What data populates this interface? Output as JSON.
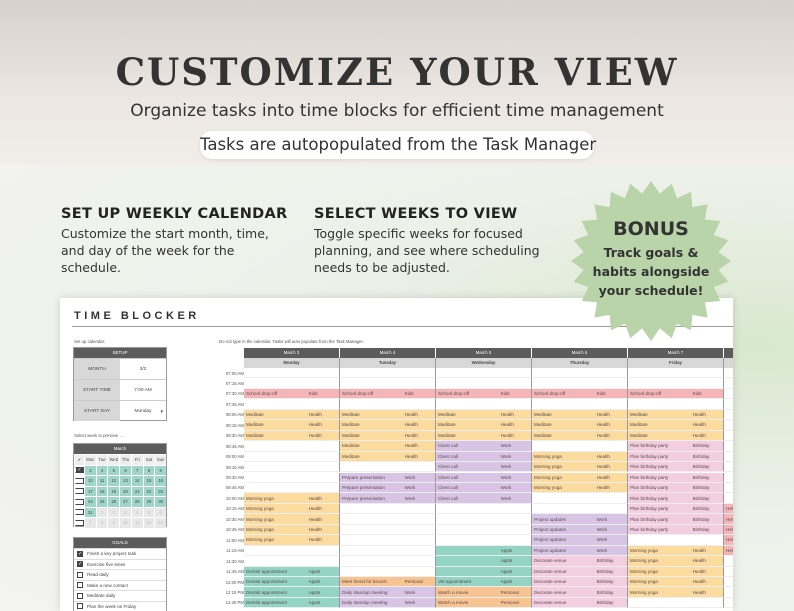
{
  "banner": {
    "title": "CUSTOMIZE YOUR VIEW",
    "subtitle": "Organize tasks into time blocks for efficient time management"
  },
  "features": [
    {
      "heading": "SET UP WEEKLY CALENDAR",
      "text": "Customize the start month, time, and day of the week for the schedule."
    },
    {
      "heading": "SELECT WEEKS TO VIEW",
      "text": "Toggle specific weeks for focused planning, and see where scheduling needs to be adjusted."
    }
  ],
  "badge": {
    "title": "BONUS",
    "text": "Track goals & habits alongside your schedule!",
    "color": "#b9d4a8"
  },
  "callout": {
    "text": "Tasks are autopopulated from the Task Manager"
  },
  "sheet": {
    "title": "TIME BLOCKER",
    "setup_note": "Set up calendar:",
    "grid_note": "Do not type in the calendar. Tasks will auto populate from the Task Manager.",
    "setup": {
      "header": "SETUP",
      "rows": [
        {
          "label": "MONTH",
          "value": "3/2"
        },
        {
          "label": "START TIME",
          "value": "7:00 AM"
        },
        {
          "label": "START DAY",
          "value": "Monday"
        }
      ]
    },
    "week_note": "Select week to preview →",
    "mini_calendar": {
      "month": "March",
      "check_header": "✔",
      "weekdays": [
        "Mon",
        "Tue",
        "Wed",
        "Thu",
        "Fri",
        "Sat",
        "Sun"
      ],
      "weeks": [
        {
          "checked": true,
          "days": [
            "3",
            "4",
            "5",
            "6",
            "7",
            "8",
            "9"
          ],
          "in_month": [
            true,
            true,
            true,
            true,
            true,
            true,
            true
          ]
        },
        {
          "checked": false,
          "days": [
            "10",
            "11",
            "12",
            "13",
            "14",
            "15",
            "16"
          ],
          "in_month": [
            true,
            true,
            true,
            true,
            true,
            true,
            true
          ]
        },
        {
          "checked": false,
          "days": [
            "17",
            "18",
            "19",
            "20",
            "21",
            "22",
            "23"
          ],
          "in_month": [
            true,
            true,
            true,
            true,
            true,
            true,
            true
          ]
        },
        {
          "checked": false,
          "days": [
            "24",
            "25",
            "26",
            "27",
            "28",
            "29",
            "30"
          ],
          "in_month": [
            true,
            true,
            true,
            true,
            true,
            true,
            true
          ]
        },
        {
          "checked": false,
          "days": [
            "31",
            "1",
            "2",
            "3",
            "4",
            "5",
            "6"
          ],
          "in_month": [
            true,
            false,
            false,
            false,
            false,
            false,
            false
          ]
        },
        {
          "checked": false,
          "days": [
            "7",
            "8",
            "9",
            "10",
            "11",
            "12",
            "13"
          ],
          "in_month": [
            false,
            false,
            false,
            false,
            false,
            false,
            false
          ]
        }
      ]
    },
    "goals": {
      "header": "GOALS",
      "items": [
        {
          "label": "Finish a key project task",
          "checked": true
        },
        {
          "label": "Exercise five times",
          "checked": true
        },
        {
          "label": "Read daily",
          "checked": false
        },
        {
          "label": "Make a new contact",
          "checked": false
        },
        {
          "label": "Meditate daily",
          "checked": false
        },
        {
          "label": "Plan the week on Friday",
          "checked": false
        }
      ]
    },
    "times": [
      "07:00 AM",
      "07:15 AM",
      "07:30 AM",
      "07:45 AM",
      "08:00 AM",
      "08:15 AM",
      "08:30 AM",
      "08:45 AM",
      "09:00 AM",
      "09:15 AM",
      "09:30 AM",
      "09:45 AM",
      "10:00 AM",
      "10:15 AM",
      "10:30 AM",
      "10:45 AM",
      "11:00 AM",
      "11:15 AM",
      "11:30 AM",
      "11:45 AM",
      "12:00 PM",
      "12:15 PM",
      "12:30 PM"
    ],
    "category_colors": {
      "Kids": "#f5b5b8",
      "Health": "#fbdb9e",
      "Work": "#d8c5e6",
      "Appts": "#93d4c4",
      "Personal": "#f8c592",
      "Birthday": "#f3cde0"
    },
    "days": [
      {
        "date": "March 3",
        "weekday": "Monday",
        "blocks": [
          {
            "start": "07:30 AM",
            "end": "07:30 AM",
            "task": "School drop-off",
            "category": "Kids"
          },
          {
            "start": "08:00 AM",
            "end": "08:30 AM",
            "task": "Meditate",
            "category": "Health"
          },
          {
            "start": "10:00 AM",
            "end": "11:00 AM",
            "task": "Morning yoga",
            "category": "Health"
          },
          {
            "start": "11:45 AM",
            "end": "12:30 PM",
            "task": "Dentist appointment",
            "category": "Appts"
          }
        ]
      },
      {
        "date": "March 4",
        "weekday": "Tuesday",
        "blocks": [
          {
            "start": "07:30 AM",
            "end": "07:30 AM",
            "task": "School drop-off",
            "category": "Kids"
          },
          {
            "start": "08:00 AM",
            "end": "09:00 AM",
            "task": "Meditate",
            "category": "Health"
          },
          {
            "start": "09:30 AM",
            "end": "10:00 AM",
            "task": "Prepare presentation",
            "category": "Work"
          },
          {
            "start": "12:00 PM",
            "end": "12:00 PM",
            "task": "Meet friend for brunch",
            "category": "Personal"
          },
          {
            "start": "12:15 PM",
            "end": "12:30 PM",
            "task": "Daily standup meeting",
            "category": "Work"
          }
        ]
      },
      {
        "date": "March 5",
        "weekday": "Wednesday",
        "blocks": [
          {
            "start": "07:30 AM",
            "end": "07:30 AM",
            "task": "School drop-off",
            "category": "Kids"
          },
          {
            "start": "08:00 AM",
            "end": "08:30 AM",
            "task": "Meditate",
            "category": "Health"
          },
          {
            "start": "08:45 AM",
            "end": "10:00 AM",
            "task": "Client call",
            "category": "Work"
          },
          {
            "start": "11:15 AM",
            "end": "11:45 AM",
            "task": "",
            "category": "Appts"
          },
          {
            "start": "12:00 PM",
            "end": "12:00 PM",
            "task": "Vet appointment",
            "category": "Appts"
          },
          {
            "start": "12:15 PM",
            "end": "12:30 PM",
            "task": "Watch a movie",
            "category": "Personal"
          }
        ]
      },
      {
        "date": "March 6",
        "weekday": "Thursday",
        "blocks": [
          {
            "start": "07:30 AM",
            "end": "07:30 AM",
            "task": "School drop-off",
            "category": "Kids"
          },
          {
            "start": "08:00 AM",
            "end": "08:30 AM",
            "task": "Meditate",
            "category": "Health"
          },
          {
            "start": "09:00 AM",
            "end": "09:45 AM",
            "task": "Morning yoga",
            "category": "Health"
          },
          {
            "start": "10:30 AM",
            "end": "11:15 AM",
            "task": "Project updates",
            "category": "Work"
          },
          {
            "start": "11:30 AM",
            "end": "12:30 PM",
            "task": "Decorate venue",
            "category": "Birthday"
          }
        ]
      },
      {
        "date": "March 7",
        "weekday": "Friday",
        "blocks": [
          {
            "start": "07:30 AM",
            "end": "07:30 AM",
            "task": "School drop-off",
            "category": "Kids"
          },
          {
            "start": "08:00 AM",
            "end": "08:30 AM",
            "task": "Meditate",
            "category": "Health"
          },
          {
            "start": "08:45 AM",
            "end": "10:45 AM",
            "task": "Plan birthday party",
            "category": "Birthday"
          },
          {
            "start": "11:15 AM",
            "end": "12:15 PM",
            "task": "Morning yoga",
            "category": "Health"
          }
        ]
      },
      {
        "date": "",
        "weekday": "",
        "blocks": [
          {
            "start": "10:15 AM",
            "end": "11:15 AM",
            "task": "Help with ho",
            "category": "Kids"
          }
        ]
      }
    ]
  }
}
